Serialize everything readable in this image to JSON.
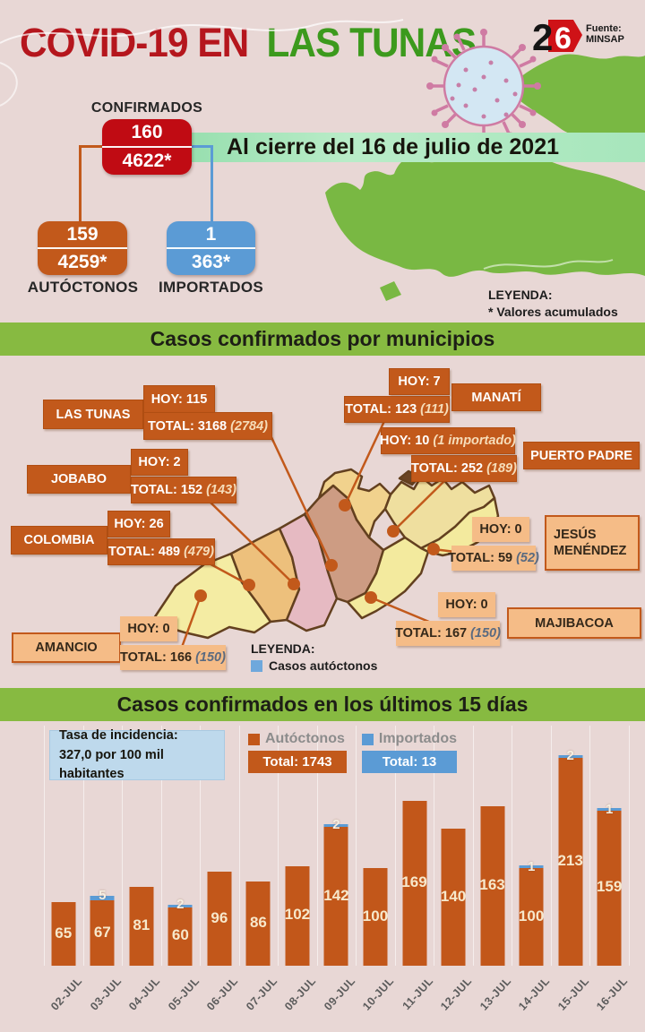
{
  "header": {
    "title_red": "COVID-19 EN",
    "title_green": "LAS TUNAS",
    "logo_2": "2",
    "logo_6": "6",
    "source": "Fuente: MINSAP",
    "date_banner": "Al cierre del 16 de julio de 2021"
  },
  "summary": {
    "confirmados_label": "CONFIRMADOS",
    "confirmados_hoy": "160",
    "confirmados_total": "4622*",
    "autoctonos_label": "AUTÓCTONOS",
    "autoctonos_hoy": "159",
    "autoctonos_total": "4259*",
    "importados_label": "IMPORTADOS",
    "importados_hoy": "1",
    "importados_total": "363*",
    "legend_title": "LEYENDA:",
    "legend_note": "* Valores acumulados"
  },
  "municipios_section": {
    "banner": "Casos confirmados por municipios",
    "legend_title": "LEYENDA:",
    "legend_item": "Casos autóctonos",
    "municipios": [
      {
        "name": "LAS TUNAS",
        "hoy": "HOY: 115",
        "total": "TOTAL: 3168",
        "total_paren": "(2784)"
      },
      {
        "name": "MANATÍ",
        "hoy": "HOY: 7",
        "total": "TOTAL: 123",
        "total_paren": "(111)"
      },
      {
        "name": "PUERTO PADRE",
        "hoy": "HOY: 10",
        "hoy_paren": "(1 importado)",
        "total": "TOTAL: 252",
        "total_paren": "(189)"
      },
      {
        "name": "JOBABO",
        "hoy": "HOY: 2",
        "total": "TOTAL: 152",
        "total_paren": "(143)"
      },
      {
        "name": "COLOMBIA",
        "hoy": "HOY: 26",
        "total": "TOTAL: 489",
        "total_paren": "(479)"
      },
      {
        "name": "JESÚS MENÉNDEZ",
        "hoy": "HOY: 0",
        "total": "TOTAL: 59",
        "total_paren": "(52)"
      },
      {
        "name": "MAJIBACOA",
        "hoy": "HOY: 0",
        "total": "TOTAL: 167",
        "total_paren": "(150)"
      },
      {
        "name": "AMANCIO",
        "hoy": "HOY: 0",
        "total": "TOTAL: 166",
        "total_paren": "(150)"
      }
    ]
  },
  "chart_section": {
    "banner": "Casos confirmados en los últimos 15 días",
    "incidence_line1": "Tasa de incidencia:",
    "incidence_line2": "327,0 por 100 mil  habitantes",
    "legend_autoctonos_label": "Autóctonos",
    "legend_autoctonos_total": "Total: 1743",
    "legend_importados_label": "Importados",
    "legend_importados_total": "Total: 13"
  },
  "chart_data": {
    "type": "bar",
    "stacked": true,
    "categories": [
      "02-JUL",
      "03-JUL",
      "04-JUL",
      "05-JUL",
      "06-JUL",
      "07-JUL",
      "08-JUL",
      "09-JUL",
      "10-JUL",
      "11-JUL",
      "12-JUL",
      "13-JUL",
      "14-JUL",
      "15-JUL",
      "16-JUL"
    ],
    "series": [
      {
        "name": "Autóctonos",
        "color": "#c2571a",
        "values": [
          65,
          67,
          81,
          60,
          96,
          86,
          102,
          142,
          100,
          169,
          140,
          163,
          100,
          213,
          159
        ]
      },
      {
        "name": "Importados",
        "color": "#5b9bd5",
        "values": [
          0,
          5,
          0,
          2,
          0,
          0,
          0,
          2,
          0,
          0,
          0,
          0,
          1,
          2,
          1
        ]
      }
    ],
    "totals": {
      "autoctonos": 1743,
      "importados": 13
    },
    "annotations": [
      "Tasa de incidencia: 327,0 por 100 mil habitantes"
    ],
    "ylim": [
      0,
      220
    ],
    "grid": "faint-vertical-column-lines",
    "value_labels": "inside-bar-centered",
    "legend_position": "top"
  },
  "colors": {
    "background": "#e8d7d5",
    "red": "#c00b13",
    "orange": "#c2591b",
    "peach": "#f5bc87",
    "blue": "#5b9bd5",
    "light_blue": "#bed9ec",
    "banner_green": "#87ba41",
    "band_green": "#9be0b4",
    "map_green": "#79b843",
    "title_red": "#b5161d",
    "title_green": "#3c9a1d"
  }
}
